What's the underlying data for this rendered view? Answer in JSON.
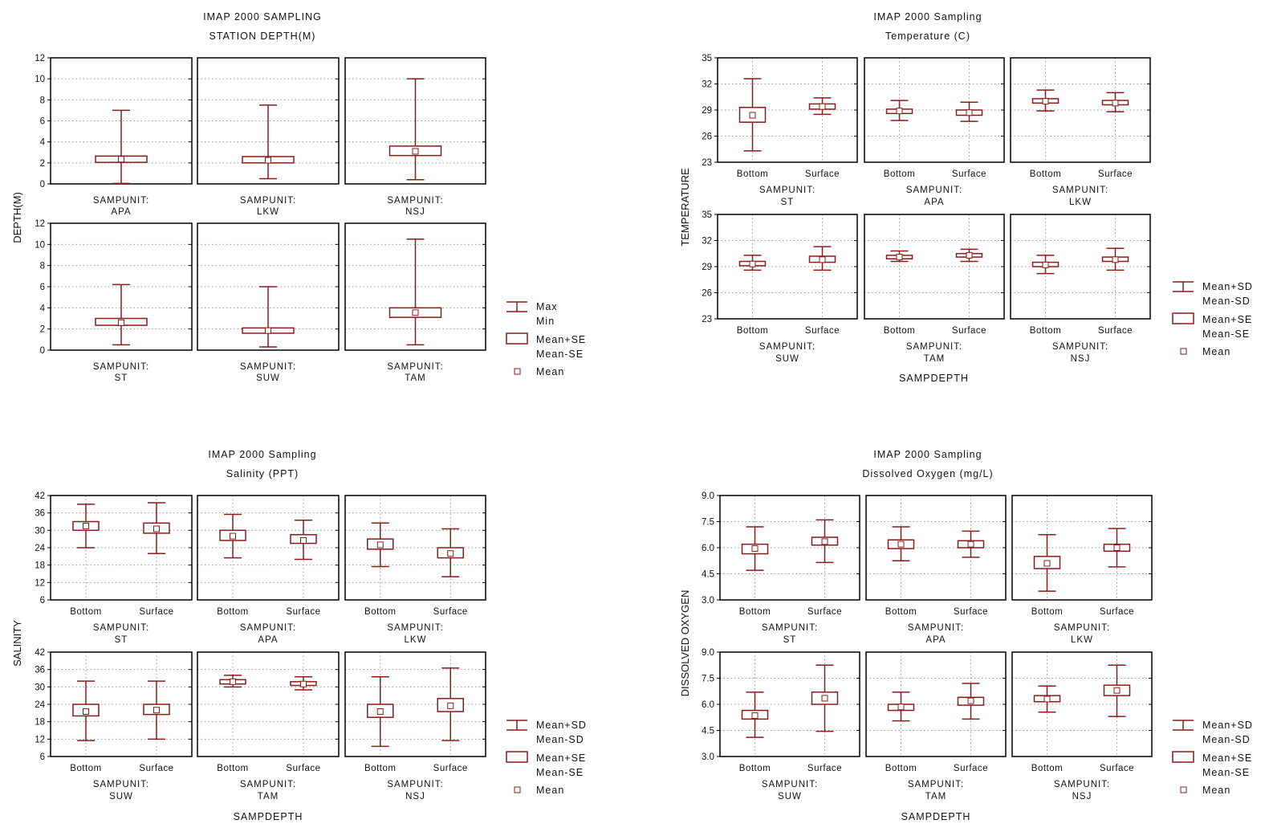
{
  "colors": {
    "box": "#8b1a1a",
    "frame": "#000000",
    "grid": "#9a9a9a",
    "text": "#111111"
  },
  "chart_data": [
    {
      "id": "depth",
      "type": "boxplot",
      "title": [
        "IMAP 2000 SAMPLING",
        "STATION DEPTH(M)"
      ],
      "ylabel": "DEPTH(M)",
      "xlabel": "",
      "ylim": [
        0,
        12
      ],
      "yticks": [
        "0",
        "2",
        "4",
        "6",
        "8",
        "10",
        "12"
      ],
      "grouping_label": "SAMPUNIT:",
      "categories": [],
      "legend": [
        "Max",
        "Min",
        "Mean+SE",
        "Mean-SE",
        "Mean"
      ],
      "rows": [
        [
          {
            "unit": "APA",
            "boxes": [
              {
                "mean": 2.35,
                "box": [
                  2.05,
                  2.65
                ],
                "whisker": [
                  0.05,
                  7.0
                ]
              }
            ]
          },
          {
            "unit": "LKW",
            "boxes": [
              {
                "mean": 2.25,
                "box": [
                  2.0,
                  2.6
                ],
                "whisker": [
                  0.5,
                  7.5
                ]
              }
            ]
          },
          {
            "unit": "NSJ",
            "boxes": [
              {
                "mean": 3.1,
                "box": [
                  2.7,
                  3.6
                ],
                "whisker": [
                  0.4,
                  10.0
                ]
              }
            ]
          }
        ],
        [
          {
            "unit": "ST",
            "boxes": [
              {
                "mean": 2.6,
                "box": [
                  2.35,
                  3.0
                ],
                "whisker": [
                  0.5,
                  6.2
                ]
              }
            ]
          },
          {
            "unit": "SUW",
            "boxes": [
              {
                "mean": 1.85,
                "box": [
                  1.6,
                  2.1
                ],
                "whisker": [
                  0.3,
                  6.0
                ]
              }
            ]
          },
          {
            "unit": "TAM",
            "boxes": [
              {
                "mean": 3.55,
                "box": [
                  3.1,
                  4.0
                ],
                "whisker": [
                  0.5,
                  10.5
                ]
              }
            ]
          }
        ]
      ]
    },
    {
      "id": "temperature",
      "type": "boxplot",
      "title": [
        "IMAP 2000 Sampling",
        "Temperature (C)"
      ],
      "ylabel": "TEMPERATURE",
      "xlabel": "SAMPDEPTH",
      "ylim": [
        23,
        35
      ],
      "yticks": [
        "23",
        "26",
        "29",
        "32",
        "35"
      ],
      "grouping_label": "SAMPUNIT:",
      "categories": [
        "Bottom",
        "Surface"
      ],
      "legend": [
        "Mean+SD",
        "Mean-SD",
        "Mean+SE",
        "Mean-SE",
        "Mean"
      ],
      "rows": [
        [
          {
            "unit": "ST",
            "boxes": [
              {
                "mean": 28.4,
                "box": [
                  27.6,
                  29.3
                ],
                "whisker": [
                  24.3,
                  32.6
                ]
              },
              {
                "mean": 29.4,
                "box": [
                  29.1,
                  29.7
                ],
                "whisker": [
                  28.5,
                  30.4
                ]
              }
            ]
          },
          {
            "unit": "APA",
            "boxes": [
              {
                "mean": 28.9,
                "box": [
                  28.6,
                  29.1
                ],
                "whisker": [
                  27.8,
                  30.1
                ]
              },
              {
                "mean": 28.7,
                "box": [
                  28.4,
                  29.0
                ],
                "whisker": [
                  27.7,
                  29.9
                ]
              }
            ]
          },
          {
            "unit": "LKW",
            "boxes": [
              {
                "mean": 30.0,
                "box": [
                  29.8,
                  30.3
                ],
                "whisker": [
                  28.9,
                  31.3
                ]
              },
              {
                "mean": 29.8,
                "box": [
                  29.6,
                  30.1
                ],
                "whisker": [
                  28.8,
                  31.0
                ]
              }
            ]
          }
        ],
        [
          {
            "unit": "SUW",
            "boxes": [
              {
                "mean": 29.3,
                "box": [
                  29.1,
                  29.6
                ],
                "whisker": [
                  28.6,
                  30.3
                ]
              },
              {
                "mean": 29.8,
                "box": [
                  29.5,
                  30.2
                ],
                "whisker": [
                  28.6,
                  31.3
                ]
              }
            ]
          },
          {
            "unit": "TAM",
            "boxes": [
              {
                "mean": 30.1,
                "box": [
                  29.9,
                  30.3
                ],
                "whisker": [
                  29.6,
                  30.8
                ]
              },
              {
                "mean": 30.3,
                "box": [
                  30.1,
                  30.5
                ],
                "whisker": [
                  29.6,
                  31.0
                ]
              }
            ]
          },
          {
            "unit": "NSJ",
            "boxes": [
              {
                "mean": 29.2,
                "box": [
                  29.0,
                  29.5
                ],
                "whisker": [
                  28.2,
                  30.3
                ]
              },
              {
                "mean": 29.8,
                "box": [
                  29.6,
                  30.1
                ],
                "whisker": [
                  28.6,
                  31.1
                ]
              }
            ]
          }
        ]
      ]
    },
    {
      "id": "salinity",
      "type": "boxplot",
      "title": [
        "IMAP 2000 Sampling",
        "Salinity (PPT)"
      ],
      "ylabel": "SALINITY",
      "xlabel": "SAMPDEPTH",
      "ylim": [
        6,
        42
      ],
      "yticks": [
        "6",
        "12",
        "18",
        "24",
        "30",
        "36",
        "42"
      ],
      "grouping_label": "SAMPUNIT:",
      "categories": [
        "Bottom",
        "Surface"
      ],
      "legend": [
        "Mean+SD",
        "Mean-SD",
        "Mean+SE",
        "Mean-SE",
        "Mean"
      ],
      "rows": [
        [
          {
            "unit": "ST",
            "boxes": [
              {
                "mean": 31.5,
                "box": [
                  30.0,
                  33.0
                ],
                "whisker": [
                  24.0,
                  39.0
                ]
              },
              {
                "mean": 30.5,
                "box": [
                  29.0,
                  32.5
                ],
                "whisker": [
                  22.0,
                  39.5
                ]
              }
            ]
          },
          {
            "unit": "APA",
            "boxes": [
              {
                "mean": 28.0,
                "box": [
                  26.5,
                  30.0
                ],
                "whisker": [
                  20.5,
                  35.5
                ]
              },
              {
                "mean": 26.5,
                "box": [
                  25.5,
                  28.5
                ],
                "whisker": [
                  20.0,
                  33.5
                ]
              }
            ]
          },
          {
            "unit": "LKW",
            "boxes": [
              {
                "mean": 25.0,
                "box": [
                  23.5,
                  27.0
                ],
                "whisker": [
                  17.5,
                  32.5
                ]
              },
              {
                "mean": 22.0,
                "box": [
                  20.5,
                  24.0
                ],
                "whisker": [
                  14.0,
                  30.5
                ]
              }
            ]
          }
        ],
        [
          {
            "unit": "SUW",
            "boxes": [
              {
                "mean": 21.5,
                "box": [
                  20.0,
                  24.0
                ],
                "whisker": [
                  11.5,
                  32.0
                ]
              },
              {
                "mean": 22.0,
                "box": [
                  20.5,
                  24.0
                ],
                "whisker": [
                  12.0,
                  32.0
                ]
              }
            ]
          },
          {
            "unit": "TAM",
            "boxes": [
              {
                "mean": 31.8,
                "box": [
                  31.0,
                  32.5
                ],
                "whisker": [
                  30.0,
                  34.0
                ]
              },
              {
                "mean": 31.0,
                "box": [
                  30.5,
                  31.8
                ],
                "whisker": [
                  29.0,
                  33.5
                ]
              }
            ]
          },
          {
            "unit": "NSJ",
            "boxes": [
              {
                "mean": 21.5,
                "box": [
                  19.5,
                  24.0
                ],
                "whisker": [
                  9.5,
                  33.5
                ]
              },
              {
                "mean": 23.5,
                "box": [
                  21.5,
                  26.0
                ],
                "whisker": [
                  11.5,
                  36.5
                ]
              }
            ]
          }
        ]
      ]
    },
    {
      "id": "oxygen",
      "type": "boxplot",
      "title": [
        "IMAP 2000 Sampling",
        "Dissolved Oxygen (mg/L)"
      ],
      "ylabel": "DISSOLVED OXYGEN",
      "xlabel": "SAMPDEPTH",
      "ylim": [
        3.0,
        9.0
      ],
      "yticks": [
        "3.0",
        "4.5",
        "6.0",
        "7.5",
        "9.0"
      ],
      "grouping_label": "SAMPUNIT:",
      "categories": [
        "Bottom",
        "Surface"
      ],
      "legend": [
        "Mean+SD",
        "Mean-SD",
        "Mean+SE",
        "Mean-SE",
        "Mean"
      ],
      "rows": [
        [
          {
            "unit": "ST",
            "boxes": [
              {
                "mean": 5.95,
                "box": [
                  5.65,
                  6.2
                ],
                "whisker": [
                  4.7,
                  7.2
                ]
              },
              {
                "mean": 6.35,
                "box": [
                  6.15,
                  6.6
                ],
                "whisker": [
                  5.15,
                  7.6
                ]
              }
            ]
          },
          {
            "unit": "APA",
            "boxes": [
              {
                "mean": 6.2,
                "box": [
                  5.95,
                  6.45
                ],
                "whisker": [
                  5.25,
                  7.2
                ]
              },
              {
                "mean": 6.2,
                "box": [
                  6.0,
                  6.4
                ],
                "whisker": [
                  5.45,
                  6.95
                ]
              }
            ]
          },
          {
            "unit": "LKW",
            "boxes": [
              {
                "mean": 5.1,
                "box": [
                  4.8,
                  5.5
                ],
                "whisker": [
                  3.5,
                  6.75
                ]
              },
              {
                "mean": 6.0,
                "box": [
                  5.8,
                  6.2
                ],
                "whisker": [
                  4.9,
                  7.1
                ]
              }
            ]
          }
        ],
        [
          {
            "unit": "SUW",
            "boxes": [
              {
                "mean": 5.35,
                "box": [
                  5.15,
                  5.65
                ],
                "whisker": [
                  4.1,
                  6.7
                ]
              },
              {
                "mean": 6.35,
                "box": [
                  6.0,
                  6.7
                ],
                "whisker": [
                  4.45,
                  8.25
                ]
              }
            ]
          },
          {
            "unit": "TAM",
            "boxes": [
              {
                "mean": 5.85,
                "box": [
                  5.65,
                  6.0
                ],
                "whisker": [
                  5.05,
                  6.7
                ]
              },
              {
                "mean": 6.2,
                "box": [
                  5.95,
                  6.4
                ],
                "whisker": [
                  5.15,
                  7.2
                ]
              }
            ]
          },
          {
            "unit": "NSJ",
            "boxes": [
              {
                "mean": 6.3,
                "box": [
                  6.15,
                  6.5
                ],
                "whisker": [
                  5.55,
                  7.05
                ]
              },
              {
                "mean": 6.8,
                "box": [
                  6.5,
                  7.1
                ],
                "whisker": [
                  5.3,
                  8.25
                ]
              }
            ]
          }
        ]
      ]
    }
  ]
}
